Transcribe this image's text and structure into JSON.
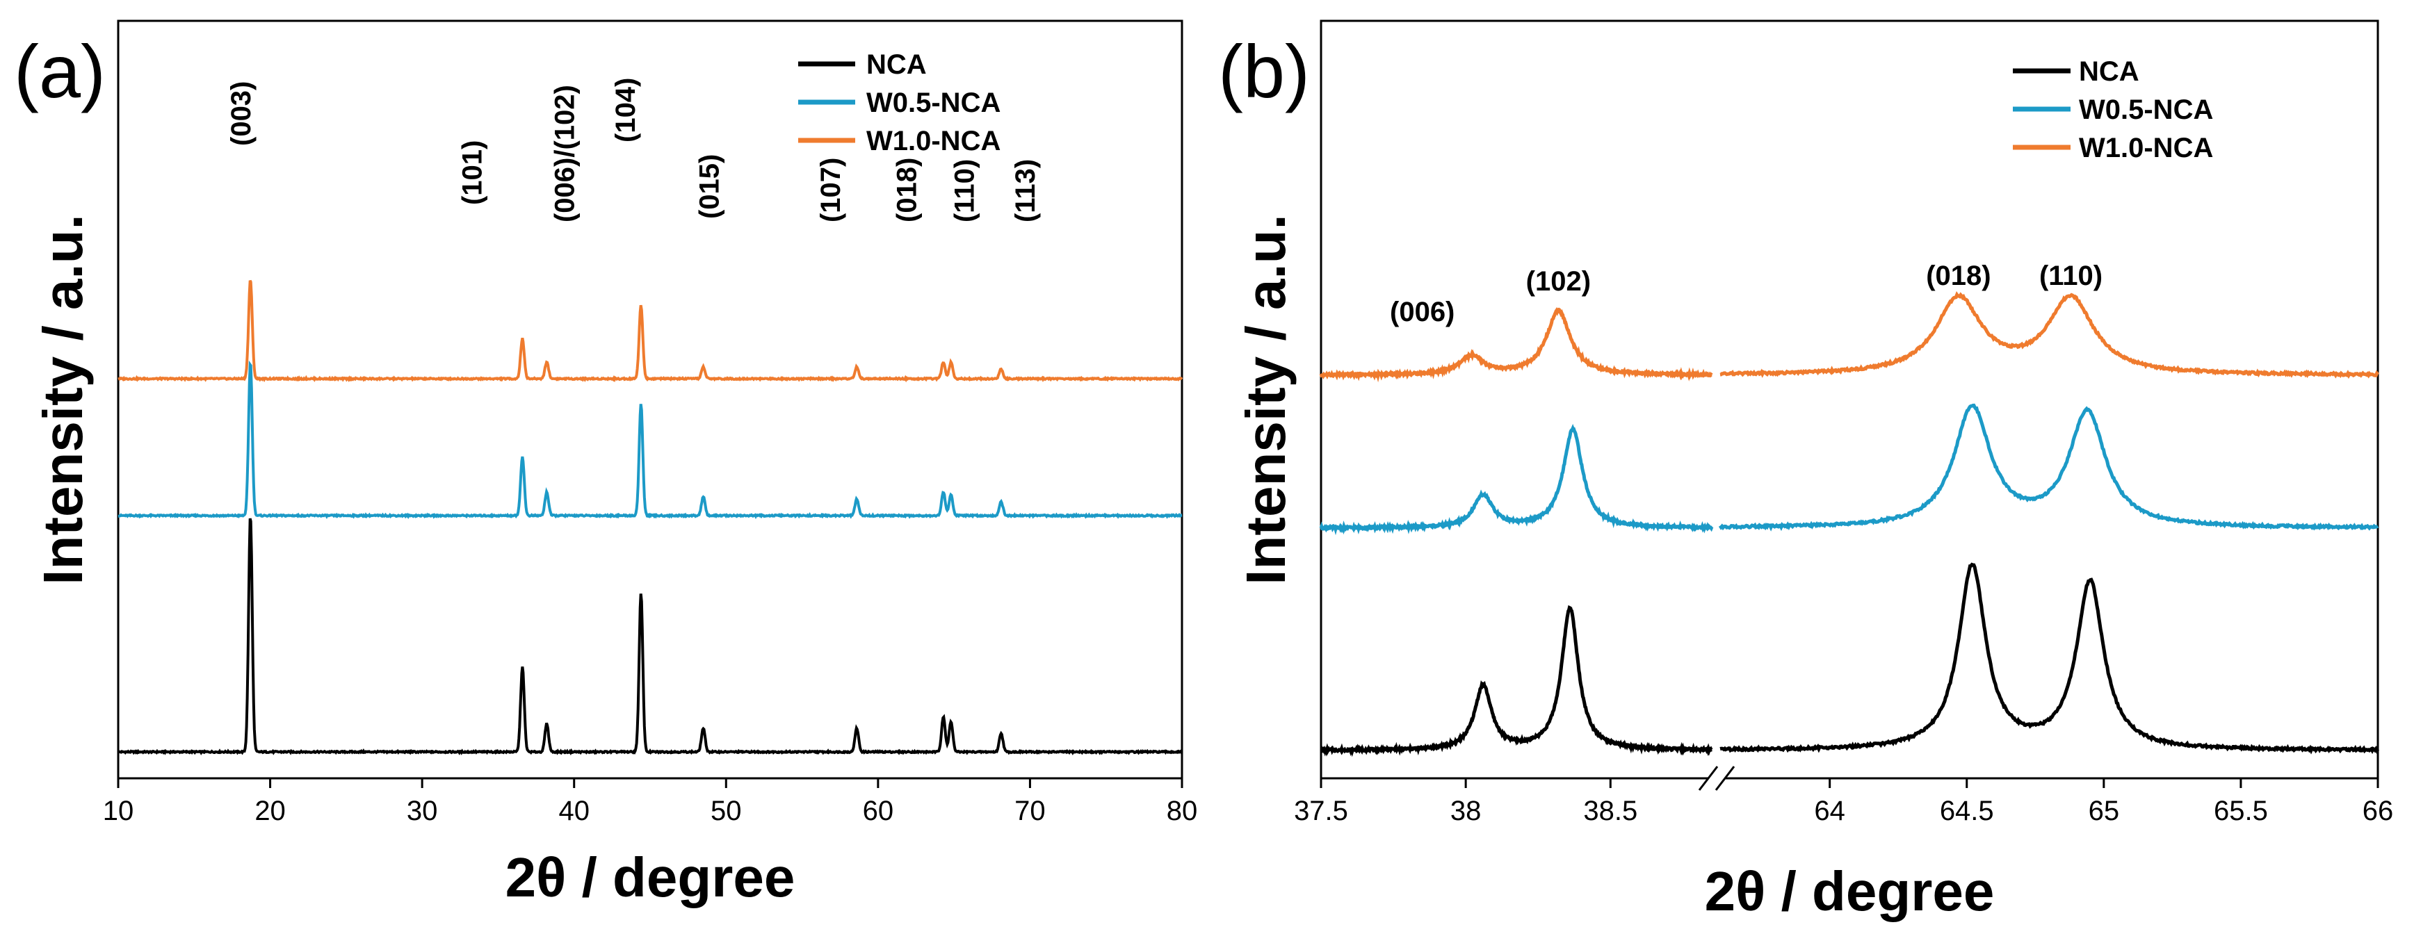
{
  "chart_data": [
    {
      "panel": "(a)",
      "type": "line",
      "xlabel": "2θ / degree",
      "ylabel": "Intensity / a.u.",
      "xlim": [
        10,
        80
      ],
      "xticks": [
        10,
        20,
        30,
        40,
        50,
        60,
        70,
        80
      ],
      "grid": false,
      "legend_position": "top-right",
      "series": [
        {
          "name": "NCA",
          "color": "#000000",
          "offset": 0,
          "peaks": [
            [
              18.7,
              1.0
            ],
            [
              36.6,
              0.36
            ],
            [
              38.2,
              0.12
            ],
            [
              44.4,
              0.67
            ],
            [
              48.5,
              0.1
            ],
            [
              58.6,
              0.1
            ],
            [
              64.3,
              0.15
            ],
            [
              64.8,
              0.13
            ],
            [
              68.1,
              0.08
            ]
          ]
        },
        {
          "name": "W0.5-NCA",
          "color": "#1c9ac7",
          "offset": 1,
          "peaks": [
            [
              18.7,
              0.65
            ],
            [
              36.6,
              0.25
            ],
            [
              38.2,
              0.1
            ],
            [
              44.4,
              0.47
            ],
            [
              48.5,
              0.08
            ],
            [
              58.6,
              0.07
            ],
            [
              64.3,
              0.1
            ],
            [
              64.8,
              0.09
            ],
            [
              68.1,
              0.06
            ]
          ]
        },
        {
          "name": "W1.0-NCA",
          "color": "#ef7b2e",
          "offset": 2,
          "peaks": [
            [
              18.7,
              0.42
            ],
            [
              36.6,
              0.17
            ],
            [
              38.2,
              0.07
            ],
            [
              44.4,
              0.31
            ],
            [
              48.5,
              0.05
            ],
            [
              58.6,
              0.05
            ],
            [
              64.3,
              0.07
            ],
            [
              64.8,
              0.07
            ],
            [
              68.1,
              0.04
            ]
          ]
        }
      ],
      "annotations": [
        {
          "text": "(003)",
          "x": 18.7
        },
        {
          "text": "(101)",
          "x": 33.9
        },
        {
          "text": "(006)/(102)",
          "x": 40.0
        },
        {
          "text": "(104)",
          "x": 44.0
        },
        {
          "text": "(015)",
          "x": 49.5
        },
        {
          "text": "(107)",
          "x": 57.5
        },
        {
          "text": "(018)",
          "x": 62.5
        },
        {
          "text": "(110)",
          "x": 66.3
        },
        {
          "text": "(113)",
          "x": 70.3
        }
      ]
    },
    {
      "panel": "(b)",
      "type": "line",
      "xlabel": "2θ / degree",
      "ylabel": "Intensity / a.u.",
      "xlim_segments": [
        [
          37.5,
          38.85
        ],
        [
          63.6,
          66.0
        ]
      ],
      "axis_break": true,
      "xticks": [
        37.5,
        38.0,
        38.5,
        64.0,
        64.5,
        65.0,
        65.5,
        66.0
      ],
      "grid": false,
      "legend_position": "top-right",
      "series": [
        {
          "name": "NCA",
          "color": "#000000",
          "offset": 0,
          "peaks": [
            [
              38.06,
              0.28,
              0.035
            ],
            [
              38.36,
              0.62,
              0.035
            ],
            [
              64.52,
              0.8,
              0.06
            ],
            [
              64.95,
              0.73,
              0.06
            ]
          ]
        },
        {
          "name": "W0.5-NCA",
          "color": "#1c9ac7",
          "offset": 1,
          "peaks": [
            [
              38.06,
              0.14,
              0.04
            ],
            [
              38.37,
              0.43,
              0.04
            ],
            [
              64.52,
              0.52,
              0.08
            ],
            [
              64.94,
              0.5,
              0.08
            ]
          ]
        },
        {
          "name": "W1.0-NCA",
          "color": "#ef7b2e",
          "offset": 2,
          "peaks": [
            [
              38.02,
              0.08,
              0.05
            ],
            [
              38.32,
              0.28,
              0.05
            ],
            [
              64.47,
              0.33,
              0.1
            ],
            [
              64.88,
              0.33,
              0.1
            ]
          ]
        }
      ],
      "annotations": [
        {
          "text": "(006)",
          "x": 37.85
        },
        {
          "text": "(102)",
          "x": 38.32
        },
        {
          "text": "(018)",
          "x": 64.47
        },
        {
          "text": "(110)",
          "x": 64.88
        }
      ]
    }
  ]
}
